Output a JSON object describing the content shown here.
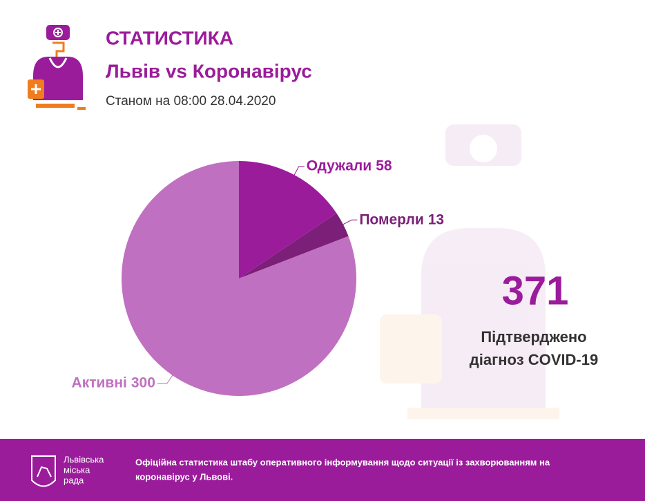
{
  "chart_data": {
    "type": "pie",
    "title": "СТАТИСТИКА",
    "subtitle": "Львів vs Коронавірус",
    "date": "Станом на 08:00 28.04.2020",
    "categories": [
      "Одужали",
      "Померли",
      "Активні"
    ],
    "values": [
      58,
      13,
      300
    ],
    "colors": [
      "#9b1c9b",
      "#7b1f79",
      "#c070c0"
    ]
  },
  "summary": {
    "value": 371,
    "label_line1": "Підтверджено",
    "label_line2": "діагноз COVID-19"
  },
  "footer": {
    "logo_lines": [
      "Львівська",
      "міська",
      "рада"
    ],
    "text_line1": "Офіційна статистика штабу оперативного інформування щодо ситуації із захворюванням на",
    "text_line2": "коронавірус у Львові."
  }
}
